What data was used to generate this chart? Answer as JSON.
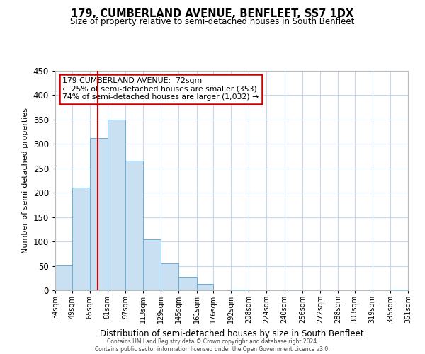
{
  "title": "179, CUMBERLAND AVENUE, BENFLEET, SS7 1DX",
  "subtitle": "Size of property relative to semi-detached houses in South Benfleet",
  "xlabel": "Distribution of semi-detached houses by size in South Benfleet",
  "ylabel": "Number of semi-detached properties",
  "bin_edges": [
    34,
    49,
    65,
    81,
    97,
    113,
    129,
    145,
    161,
    176,
    192,
    208,
    224,
    240,
    256,
    272,
    288,
    303,
    319,
    335,
    351
  ],
  "bin_labels": [
    "34sqm",
    "49sqm",
    "65sqm",
    "81sqm",
    "97sqm",
    "113sqm",
    "129sqm",
    "145sqm",
    "161sqm",
    "176sqm",
    "192sqm",
    "208sqm",
    "224sqm",
    "240sqm",
    "256sqm",
    "272sqm",
    "288sqm",
    "303sqm",
    "319sqm",
    "335sqm",
    "351sqm"
  ],
  "counts": [
    51,
    210,
    312,
    350,
    265,
    105,
    55,
    27,
    13,
    0,
    2,
    0,
    0,
    0,
    0,
    0,
    0,
    0,
    0,
    2
  ],
  "bar_color": "#c9dff2",
  "bar_edge_color": "#6aaed6",
  "property_line_x": 72,
  "red_line_color": "#cc0000",
  "annotation_text_line1": "179 CUMBERLAND AVENUE:  72sqm",
  "annotation_text_line2": "← 25% of semi-detached houses are smaller (353)",
  "annotation_text_line3": "74% of semi-detached houses are larger (1,032) →",
  "annotation_box_color": "#cc0000",
  "ylim": [
    0,
    450
  ],
  "footer_line1": "Contains HM Land Registry data © Crown copyright and database right 2024.",
  "footer_line2": "Contains public sector information licensed under the Open Government Licence v3.0.",
  "background_color": "#ffffff",
  "grid_color": "#c8d8e8"
}
